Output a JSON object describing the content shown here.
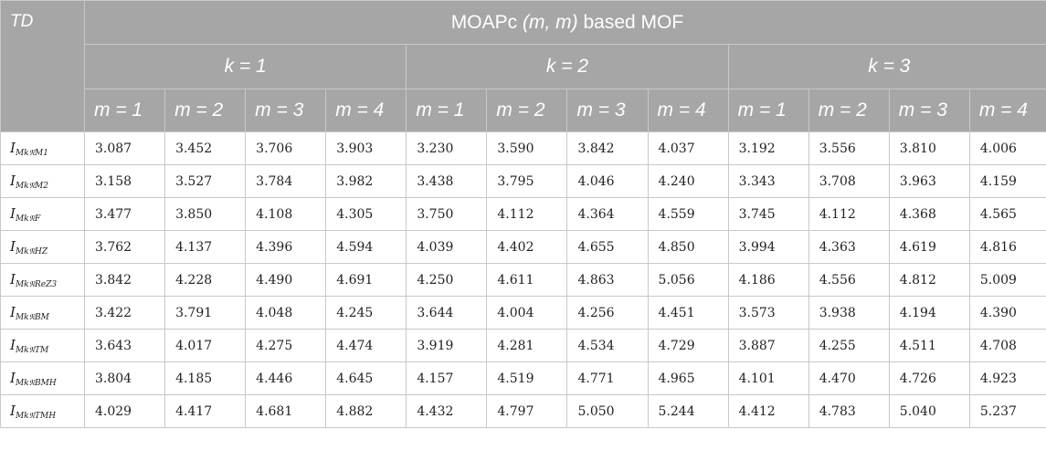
{
  "header": {
    "corner": "TD",
    "title_prefix": "MOAPc",
    "title_args": "(m, m)",
    "title_suffix": "based MOF",
    "k_groups": [
      "k = 1",
      "k = 2",
      "k = 3"
    ],
    "m_labels": [
      "m = 1",
      "m = 2",
      "m = 3",
      "m = 4"
    ]
  },
  "rows": [
    {
      "label_main": "I",
      "label_sub": "M",
      "label_subsub": "k",
      "label_frak": "𝔑",
      "label_tail": "M",
      "label_tailsub": "1",
      "values": [
        "3.087",
        "3.452",
        "3.706",
        "3.903",
        "3.230",
        "3.590",
        "3.842",
        "4.037",
        "3.192",
        "3.556",
        "3.810",
        "4.006"
      ]
    },
    {
      "label_main": "I",
      "label_sub": "M",
      "label_subsub": "k",
      "label_frak": "𝔑",
      "label_tail": "M",
      "label_tailsub": "2",
      "values": [
        "3.158",
        "3.527",
        "3.784",
        "3.982",
        "3.438",
        "3.795",
        "4.046",
        "4.240",
        "3.343",
        "3.708",
        "3.963",
        "4.159"
      ]
    },
    {
      "label_main": "I",
      "label_sub": "M",
      "label_subsub": "k",
      "label_frak": "𝔑",
      "label_tail": "F",
      "label_tailsub": "",
      "values": [
        "3.477",
        "3.850",
        "4.108",
        "4.305",
        "3.750",
        "4.112",
        "4.364",
        "4.559",
        "3.745",
        "4.112",
        "4.368",
        "4.565"
      ]
    },
    {
      "label_main": "I",
      "label_sub": "M",
      "label_subsub": "k",
      "label_frak": "𝔑",
      "label_tail": "HZ",
      "label_tailsub": "",
      "values": [
        "3.762",
        "4.137",
        "4.396",
        "4.594",
        "4.039",
        "4.402",
        "4.655",
        "4.850",
        "3.994",
        "4.363",
        "4.619",
        "4.816"
      ]
    },
    {
      "label_main": "I",
      "label_sub": "M",
      "label_subsub": "k",
      "label_frak": "𝔑",
      "label_tail": "ReZ",
      "label_tailsub": "3",
      "values": [
        "3.842",
        "4.228",
        "4.490",
        "4.691",
        "4.250",
        "4.611",
        "4.863",
        "5.056",
        "4.186",
        "4.556",
        "4.812",
        "5.009"
      ]
    },
    {
      "label_main": "I",
      "label_sub": "M",
      "label_subsub": "k",
      "label_frak": "𝔑",
      "label_tail": "BM",
      "label_tailsub": "",
      "values": [
        "3.422",
        "3.791",
        "4.048",
        "4.245",
        "3.644",
        "4.004",
        "4.256",
        "4.451",
        "3.573",
        "3.938",
        "4.194",
        "4.390"
      ]
    },
    {
      "label_main": "I",
      "label_sub": "M",
      "label_subsub": "k",
      "label_frak": "𝔑",
      "label_tail": "TM",
      "label_tailsub": "",
      "values": [
        "3.643",
        "4.017",
        "4.275",
        "4.474",
        "3.919",
        "4.281",
        "4.534",
        "4.729",
        "3.887",
        "4.255",
        "4.511",
        "4.708"
      ]
    },
    {
      "label_main": "I",
      "label_sub": "M",
      "label_subsub": "k",
      "label_frak": "𝔑",
      "label_tail": "BMH",
      "label_tailsub": "",
      "values": [
        "3.804",
        "4.185",
        "4.446",
        "4.645",
        "4.157",
        "4.519",
        "4.771",
        "4.965",
        "4.101",
        "4.470",
        "4.726",
        "4.923"
      ]
    },
    {
      "label_main": "I",
      "label_sub": "M",
      "label_subsub": "k",
      "label_frak": "𝔑",
      "label_tail": "TMH",
      "label_tailsub": "",
      "values": [
        "4.029",
        "4.417",
        "4.681",
        "4.882",
        "4.432",
        "4.797",
        "5.050",
        "5.244",
        "4.412",
        "4.783",
        "5.040",
        "5.237"
      ]
    }
  ],
  "colors": {
    "header_bg": "#a6a6a6",
    "header_text": "#ffffff",
    "border": "#c8c8c8",
    "cell_text": "#222222"
  }
}
